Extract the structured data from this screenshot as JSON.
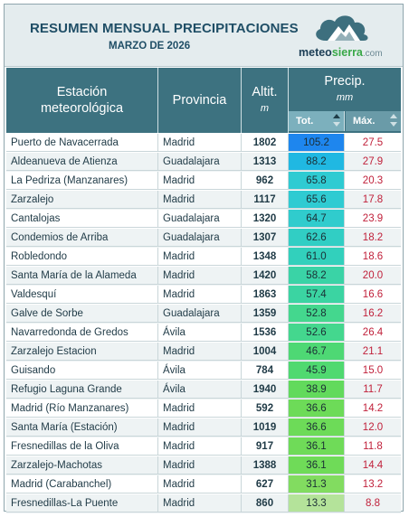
{
  "header": {
    "title": "RESUMEN MENSUAL PRECIPITACIONES",
    "subtitle": "MARZO DE 2026",
    "logo": {
      "part1": "meteo",
      "part2": "sierra",
      "part3": ".com"
    }
  },
  "columns": {
    "station_line1": "Estación",
    "station_line2": "meteorológica",
    "province": "Provincia",
    "altitude": "Altit.",
    "altitude_unit": "m",
    "precip": "Precip.",
    "precip_unit": "mm",
    "tot": "Tot.",
    "max": "Máx."
  },
  "colors": {
    "header_bg": "#3d7280",
    "max_text": "#c0203a"
  },
  "rows": [
    {
      "station": "Puerto de Navacerrada",
      "province": "Madrid",
      "altitude": "1802",
      "tot": "105.2",
      "max": "27.5",
      "tot_color": "#1e86ee"
    },
    {
      "station": "Aldeanueva de Atienza",
      "province": "Guadalajara",
      "altitude": "1313",
      "tot": "88.2",
      "max": "27.9",
      "tot_color": "#20b8e2"
    },
    {
      "station": "La Pedriza (Manzanares)",
      "province": "Madrid",
      "altitude": "962",
      "tot": "65.8",
      "max": "20.3",
      "tot_color": "#2fcbd2"
    },
    {
      "station": "Zarzalejo",
      "province": "Madrid",
      "altitude": "1117",
      "tot": "65.6",
      "max": "17.8",
      "tot_color": "#2fcbd2"
    },
    {
      "station": "Cantalojas",
      "province": "Guadalajara",
      "altitude": "1320",
      "tot": "64.7",
      "max": "23.9",
      "tot_color": "#30cccd"
    },
    {
      "station": "Condemios de Arriba",
      "province": "Guadalajara",
      "altitude": "1307",
      "tot": "62.6",
      "max": "18.2",
      "tot_color": "#31cec4"
    },
    {
      "station": "Robledondo",
      "province": "Madrid",
      "altitude": "1348",
      "tot": "61.0",
      "max": "18.6",
      "tot_color": "#32d0bc"
    },
    {
      "station": "Santa María de la Alameda",
      "province": "Madrid",
      "altitude": "1420",
      "tot": "58.2",
      "max": "20.0",
      "tot_color": "#3ad3a6"
    },
    {
      "station": "Valdesquí",
      "province": "Madrid",
      "altitude": "1863",
      "tot": "57.4",
      "max": "16.6",
      "tot_color": "#3bd4a2"
    },
    {
      "station": "Galve de Sorbe",
      "province": "Guadalajara",
      "altitude": "1359",
      "tot": "52.8",
      "max": "16.2",
      "tot_color": "#44d78e"
    },
    {
      "station": "Navarredonda de Gredos",
      "province": "Ávila",
      "altitude": "1536",
      "tot": "52.6",
      "max": "26.4",
      "tot_color": "#44d78e"
    },
    {
      "station": "Zarzalejo Estacion",
      "province": "Madrid",
      "altitude": "1004",
      "tot": "46.7",
      "max": "21.1",
      "tot_color": "#4ed874"
    },
    {
      "station": "Guisando",
      "province": "Ávila",
      "altitude": "784",
      "tot": "45.9",
      "max": "15.0",
      "tot_color": "#50d970"
    },
    {
      "station": "Refugio Laguna Grande",
      "province": "Ávila",
      "altitude": "1940",
      "tot": "38.9",
      "max": "11.7",
      "tot_color": "#62da5c"
    },
    {
      "station": "Madrid (Río Manzanares)",
      "province": "Madrid",
      "altitude": "592",
      "tot": "36.6",
      "max": "14.2",
      "tot_color": "#6ddb58"
    },
    {
      "station": "Santa María (Estación)",
      "province": "Madrid",
      "altitude": "1019",
      "tot": "36.6",
      "max": "12.0",
      "tot_color": "#6ddb58"
    },
    {
      "station": "Fresnedillas de la Oliva",
      "province": "Madrid",
      "altitude": "917",
      "tot": "36.1",
      "max": "11.8",
      "tot_color": "#6fdb58"
    },
    {
      "station": "Zarzalejo-Machotas",
      "province": "Madrid",
      "altitude": "1388",
      "tot": "36.1",
      "max": "14.4",
      "tot_color": "#6fdb58"
    },
    {
      "station": "Madrid (Carabanchel)",
      "province": "Madrid",
      "altitude": "627",
      "tot": "31.3",
      "max": "13.2",
      "tot_color": "#82dc60"
    },
    {
      "station": "Fresnedillas-La Puente",
      "province": "Madrid",
      "altitude": "860",
      "tot": "13.3",
      "max": "8.8",
      "tot_color": "#b4e39a"
    }
  ]
}
